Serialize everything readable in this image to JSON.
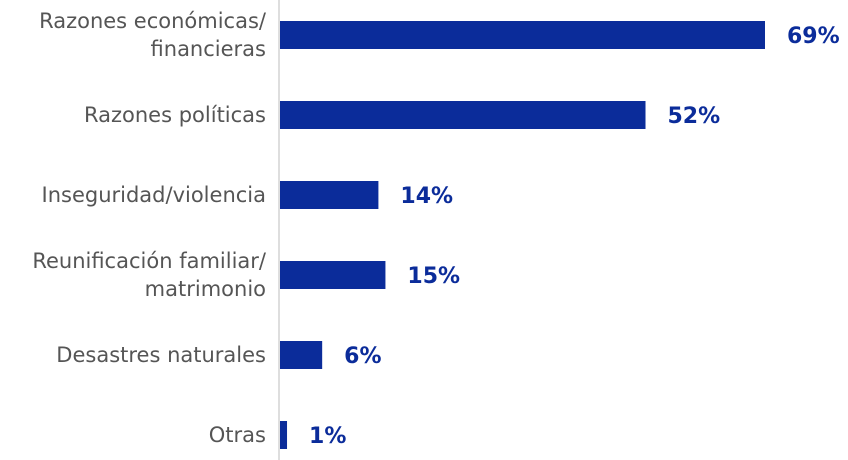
{
  "colors": {
    "bar": "#0b2c9a",
    "value_text": "#0b2c9a",
    "label_text": "#555555",
    "axis": "#d4d4d4"
  },
  "chart_data": {
    "type": "bar",
    "orientation": "horizontal",
    "categories": [
      "Razones económicas/ financieras",
      "Razones políticas",
      "Inseguridad/violencia",
      "Reunificación familiar/ matrimonio",
      "Desastres naturales",
      "Otras"
    ],
    "category_label_lines": [
      [
        "Razones económicas/",
        "financieras"
      ],
      [
        "Razones políticas"
      ],
      [
        "Inseguridad/violencia"
      ],
      [
        "Reunificación familiar/",
        "matrimonio"
      ],
      [
        "Desastres naturales"
      ],
      [
        "Otras"
      ]
    ],
    "values": [
      69,
      52,
      14,
      15,
      6,
      1
    ],
    "value_labels": [
      "69%",
      "52%",
      "14%",
      "15%",
      "6%",
      "1%"
    ],
    "xlim": [
      0,
      69
    ],
    "grid": false,
    "legend": "none"
  }
}
